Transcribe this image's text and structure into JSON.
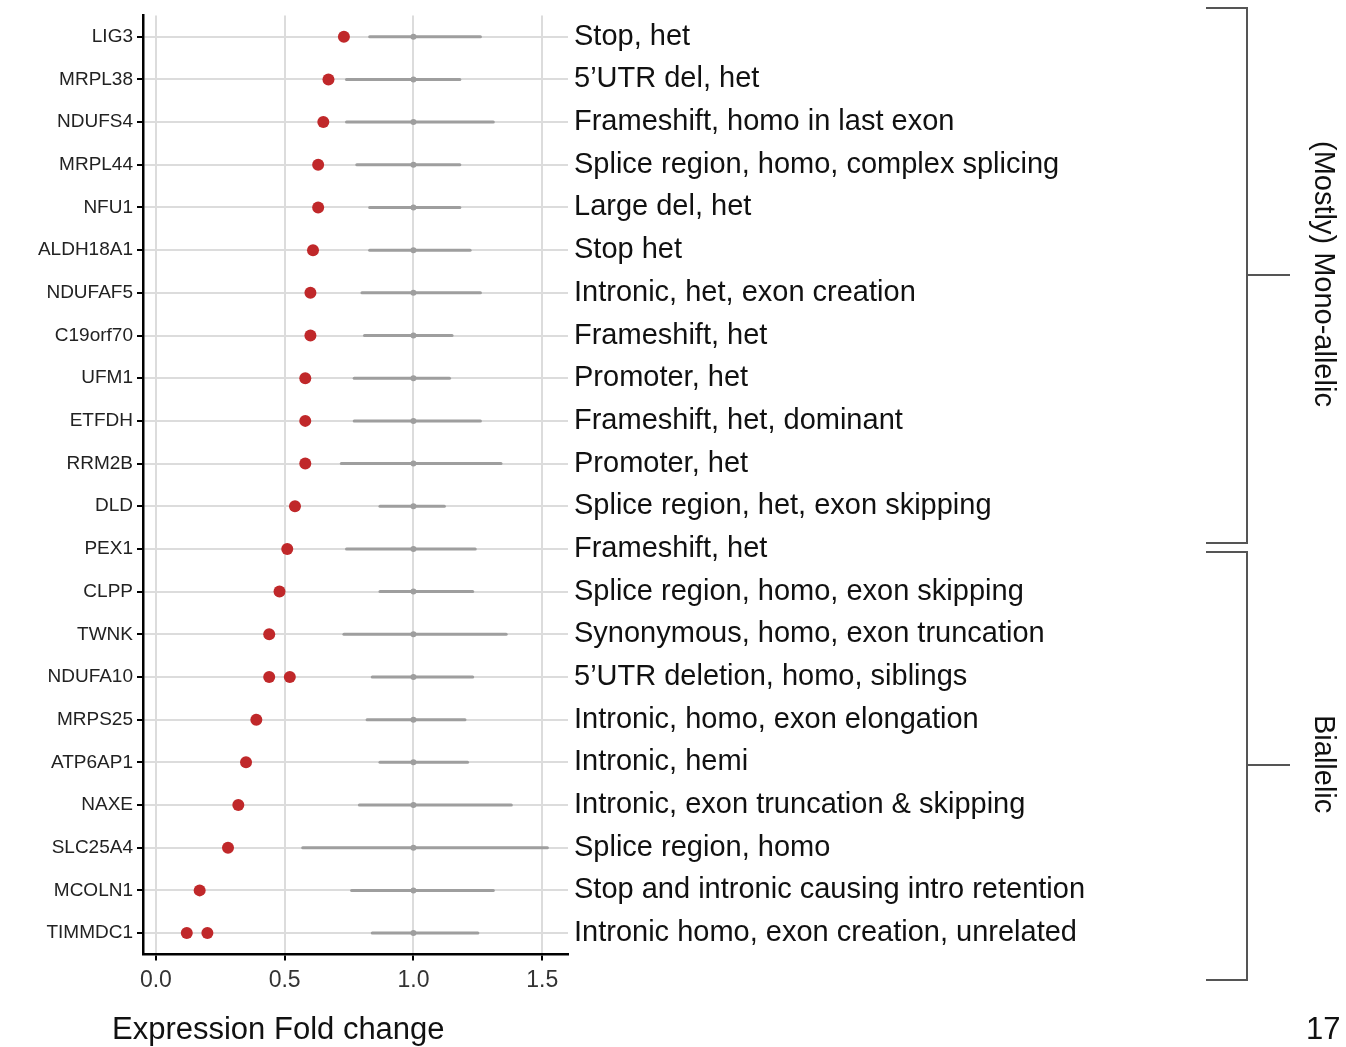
{
  "chart_data": {
    "type": "scatter",
    "orientation": "horizontal",
    "xlabel": "Expression Fold change",
    "grid": true,
    "marker": "circle",
    "categories": [
      "LIG3",
      "MRPL38",
      "NDUFS4",
      "MRPL44",
      "NFU1",
      "ALDH18A1",
      "NDUFAF5",
      "C19orf70",
      "UFM1",
      "ETFDH",
      "RRM2B",
      "DLD",
      "PEX1",
      "CLPP",
      "TWNK",
      "NDUFA10",
      "MRPS25",
      "ATP6AP1",
      "NAXE",
      "SLC25A4",
      "MCOLN1",
      "TIMMDC1"
    ],
    "xlim": [
      -0.05,
      1.6
    ],
    "xticks": [
      {
        "value": 0,
        "label": "0.0"
      },
      0.5,
      {
        "value": 1,
        "label": "1.0"
      },
      1.5
    ],
    "series": [
      {
        "color": "#9e9e9e",
        "values": [
          1,
          1,
          1,
          1,
          1,
          1,
          1,
          1,
          1,
          1,
          1,
          1,
          1,
          1,
          1,
          1,
          1,
          1,
          1,
          1,
          1,
          1
        ],
        "errors": [
          [
            0.83,
            1.26
          ],
          [
            0.74,
            1.18
          ],
          [
            0.74,
            1.31
          ],
          [
            0.78,
            1.18
          ],
          [
            0.83,
            1.18
          ],
          [
            0.83,
            1.22
          ],
          [
            0.8,
            1.26
          ],
          [
            0.81,
            1.15
          ],
          [
            0.77,
            1.14
          ],
          [
            0.77,
            1.26
          ],
          [
            0.72,
            1.34
          ],
          [
            0.87,
            1.12
          ],
          [
            0.74,
            1.24
          ],
          [
            0.87,
            1.23
          ],
          [
            0.73,
            1.36
          ],
          [
            0.84,
            1.23
          ],
          [
            0.82,
            1.2
          ],
          [
            0.87,
            1.21
          ],
          [
            0.79,
            1.38
          ],
          [
            0.57,
            1.52
          ],
          [
            0.76,
            1.31
          ],
          [
            0.84,
            1.25
          ]
        ]
      },
      {
        "color": "#c0282a",
        "values": [
          0.73,
          0.67,
          0.65,
          0.63,
          0.63,
          0.61,
          0.6,
          0.6,
          0.58,
          0.58,
          0.58,
          0.54,
          0.51,
          0.48,
          0.44,
          0.44,
          0.39,
          0.35,
          0.32,
          0.28,
          0.17,
          0.12
        ]
      },
      {
        "color": "#c0282a",
        "values": [
          null,
          null,
          null,
          null,
          null,
          null,
          null,
          null,
          null,
          null,
          null,
          null,
          null,
          null,
          null,
          0.52,
          null,
          null,
          null,
          null,
          null,
          0.2
        ]
      }
    ],
    "annotations": [
      "Stop, het",
      "5’UTR del, het",
      "Frameshift, homo in last exon",
      "Splice region, homo, complex splicing",
      "Large del, het",
      "Stop het",
      "Intronic, het, exon creation",
      "Frameshift, het",
      "Promoter, het",
      "Frameshift, het, dominant",
      "Promoter, het",
      "Splice region, het, exon skipping",
      "Frameshift, het",
      "Splice region, homo, exon skipping",
      "Synonymous, homo, exon truncation",
      "5’UTR deletion, homo, siblings",
      "Intronic, homo, exon elongation",
      "Intronic, hemi",
      "Intronic, exon truncation & skipping",
      "Splice region, homo",
      "Stop and intronic causing intro retention",
      "Intronic homo, exon creation, unrelated",
      "(Mostly) Mono-allelic",
      "Biallelic",
      "17"
    ]
  }
}
